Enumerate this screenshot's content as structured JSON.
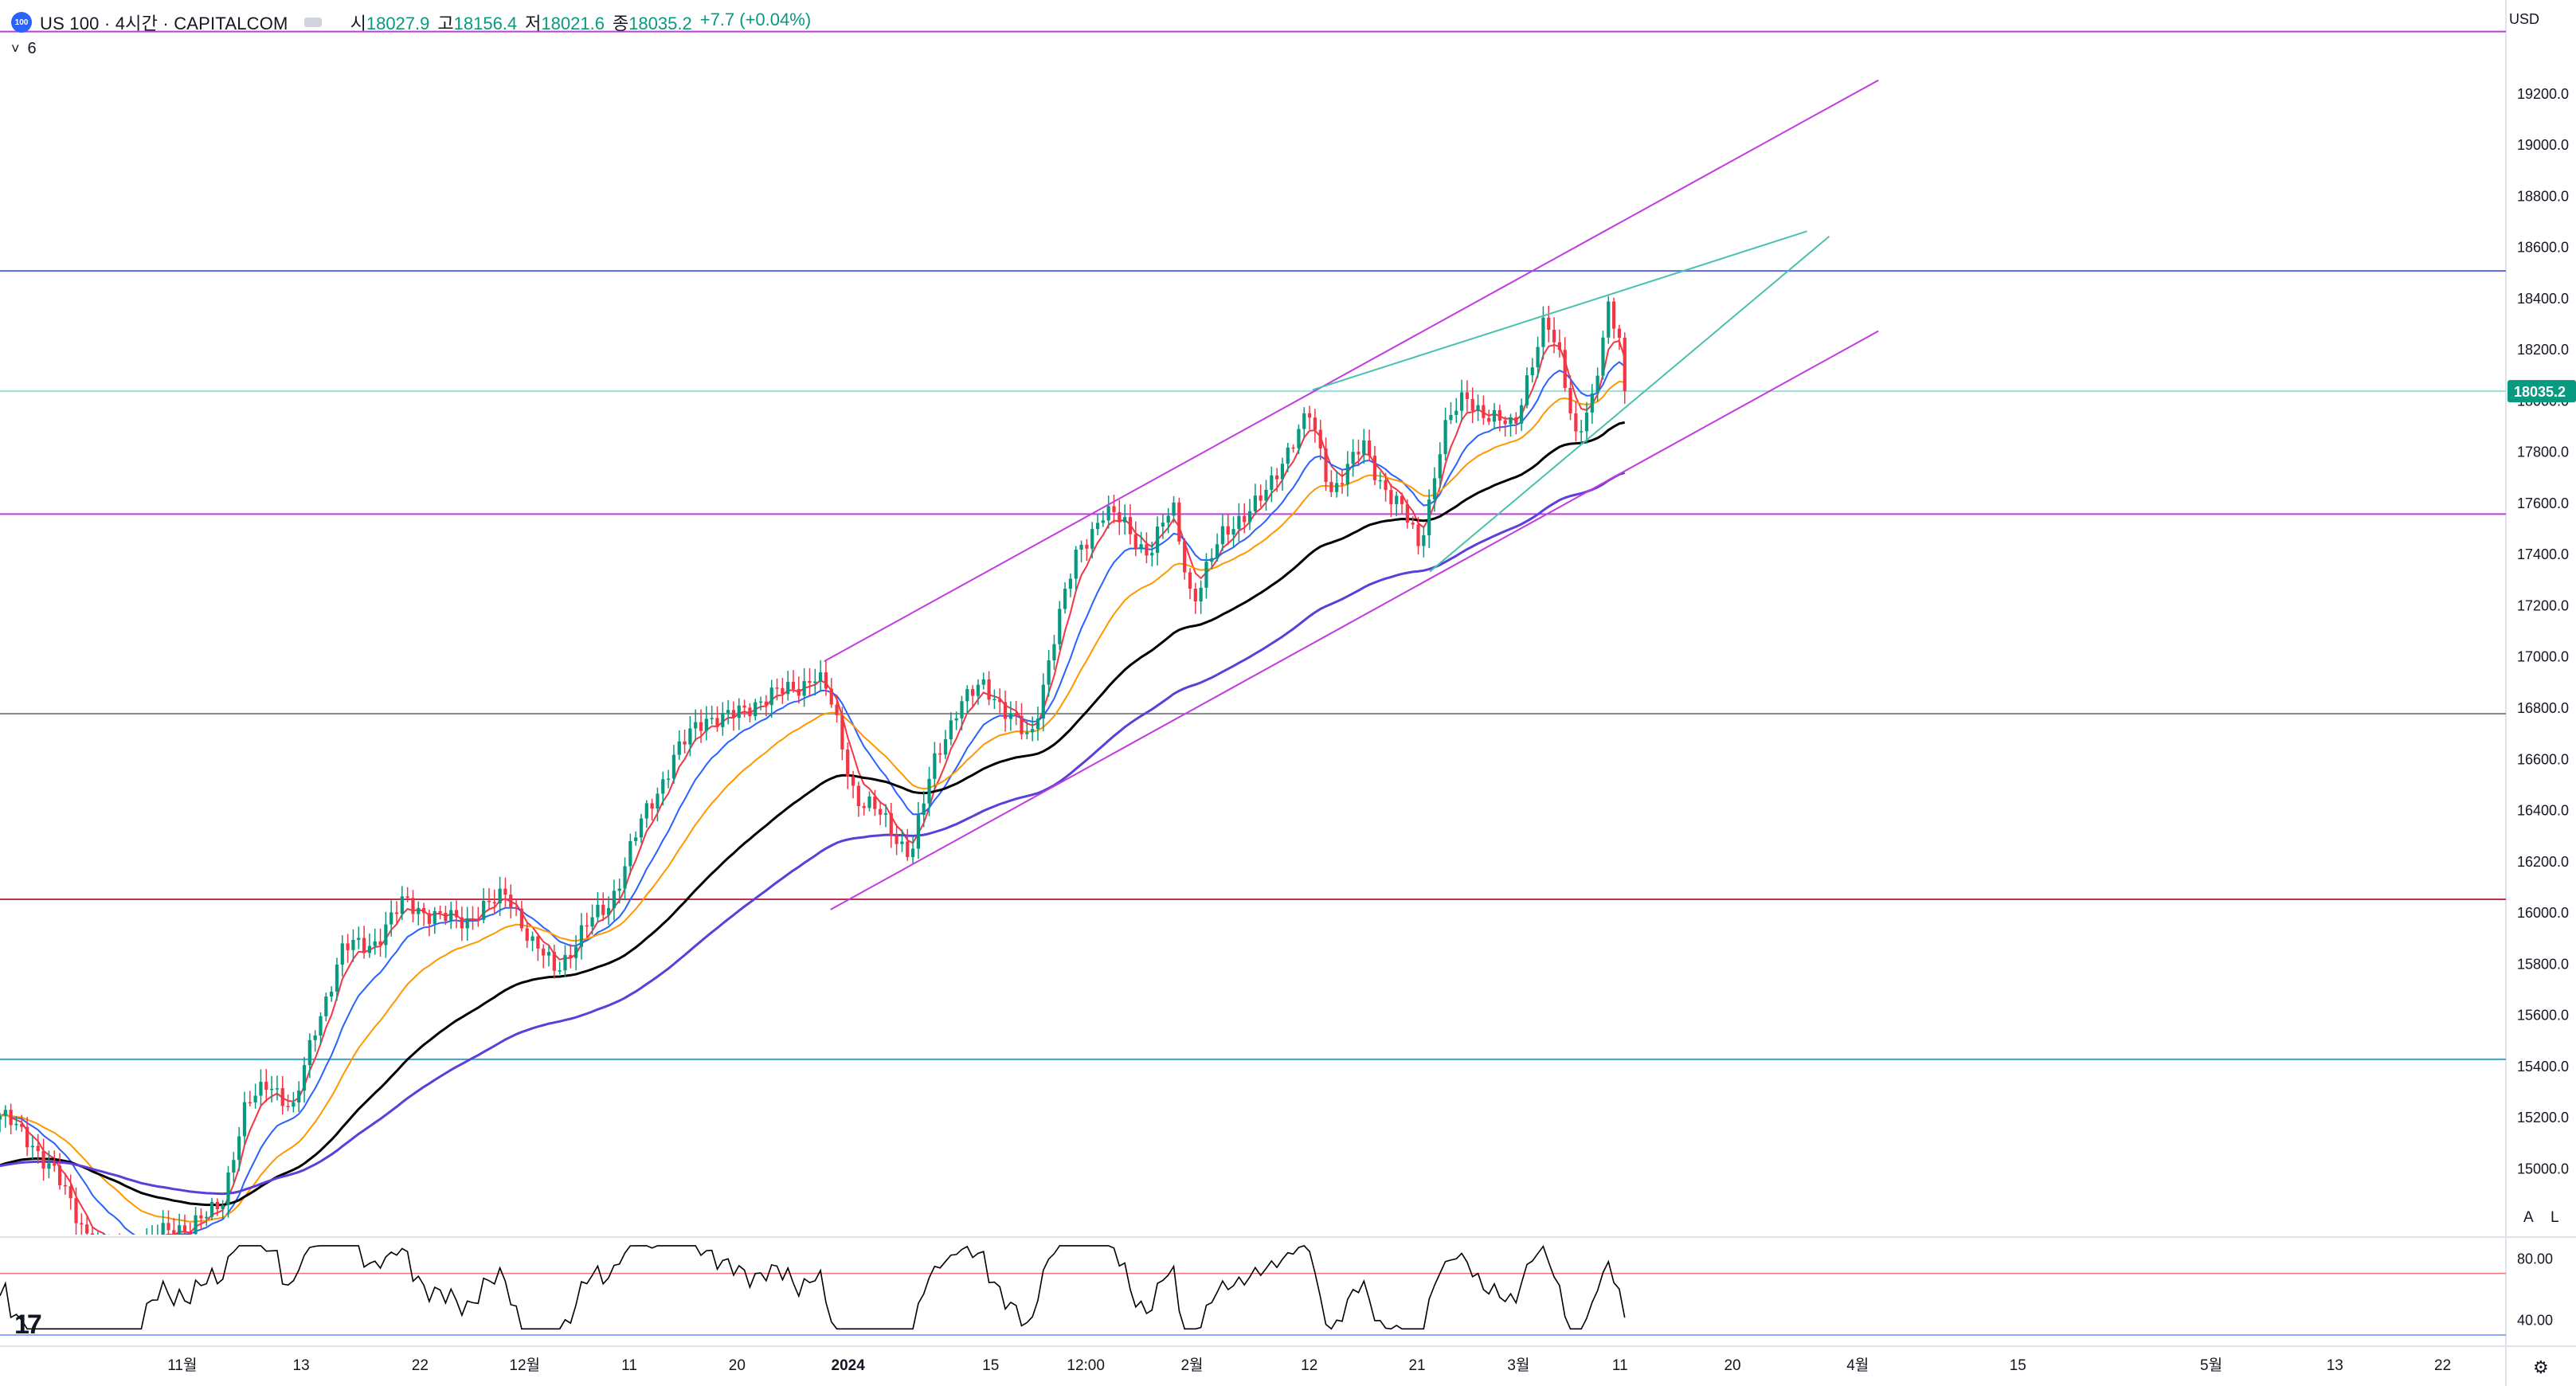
{
  "header": {
    "logo_text": "100",
    "symbol": "US 100 · 4시간 · CAPITALCOM",
    "open_label": "시",
    "open": "18027.9",
    "high_label": "고",
    "high": "18156.4",
    "low_label": "저",
    "low": "18021.6",
    "close_label": "종",
    "close": "18035.2",
    "change": "+7.7 (+0.04%)"
  },
  "indicator_row": {
    "chevron": "˅",
    "count": "6"
  },
  "currency": "USD",
  "scale_buttons": {
    "auto": "A",
    "log": "L"
  },
  "tv_logo": "17",
  "colors": {
    "up": "#089981",
    "down": "#f23645",
    "ma_red": "#f23645",
    "ma_blue": "#2962ff",
    "ma_orange": "#ff9800",
    "ma_black": "#000000",
    "ma_purple": "#5b3fd8",
    "channel": "#c13cde",
    "wedge": "#4bc0b0",
    "rsi": "#000000"
  },
  "chart_data": {
    "type": "candlestick",
    "price_axis": {
      "range": [
        14740,
        19470
      ],
      "ticks": [
        "19200.0",
        "19000.0",
        "18800.0",
        "18600.0",
        "18400.0",
        "18200.0",
        "18000.0",
        "17800.0",
        "17600.0",
        "17400.0",
        "17200.0",
        "17000.0",
        "16800.0",
        "16600.0",
        "16400.0",
        "16200.0",
        "16000.0",
        "15800.0",
        "15600.0",
        "15400.0",
        "15200.0",
        "15000.0"
      ],
      "last_price": "18035.2"
    },
    "time_axis": {
      "ticks": [
        {
          "label": "11월",
          "bar": 0.115
        },
        {
          "label": "13",
          "bar": 0.19
        },
        {
          "label": "22",
          "bar": 0.265
        },
        {
          "label": "12월",
          "bar": 0.331
        },
        {
          "label": "11",
          "bar": 0.397
        },
        {
          "label": "20",
          "bar": 0.465
        },
        {
          "label": "2024",
          "bar": 0.535
        },
        {
          "label": "15",
          "bar": 0.625
        },
        {
          "label": "12:00",
          "bar": 0.685
        },
        {
          "label": "2월",
          "bar": 0.752
        },
        {
          "label": "12",
          "bar": 0.826
        },
        {
          "label": "21",
          "bar": 0.894
        },
        {
          "label": "3월",
          "bar": 0.958
        },
        {
          "label": "11",
          "bar": 1.022
        },
        {
          "label": "20",
          "bar": 1.093
        },
        {
          "label": "4월",
          "bar": 1.172
        },
        {
          "label": "15",
          "bar": 1.273
        },
        {
          "label": "5월",
          "bar": 1.395
        },
        {
          "label": "13",
          "bar": 1.473
        },
        {
          "label": "22",
          "bar": 1.541
        }
      ]
    },
    "price_path": [
      [
        0.0,
        15190
      ],
      [
        0.02,
        15120
      ],
      [
        0.04,
        14900
      ],
      [
        0.06,
        14720
      ],
      [
        0.08,
        14640
      ],
      [
        0.1,
        14740
      ],
      [
        0.12,
        14770
      ],
      [
        0.14,
        14870
      ],
      [
        0.155,
        15230
      ],
      [
        0.17,
        15360
      ],
      [
        0.185,
        15200
      ],
      [
        0.2,
        15590
      ],
      [
        0.215,
        15830
      ],
      [
        0.235,
        15890
      ],
      [
        0.255,
        16030
      ],
      [
        0.275,
        15990
      ],
      [
        0.295,
        15960
      ],
      [
        0.32,
        16090
      ],
      [
        0.335,
        15860
      ],
      [
        0.35,
        15800
      ],
      [
        0.365,
        15880
      ],
      [
        0.385,
        16060
      ],
      [
        0.405,
        16340
      ],
      [
        0.425,
        16620
      ],
      [
        0.445,
        16750
      ],
      [
        0.47,
        16790
      ],
      [
        0.495,
        16870
      ],
      [
        0.515,
        16920
      ],
      [
        0.525,
        16800
      ],
      [
        0.54,
        16460
      ],
      [
        0.56,
        16330
      ],
      [
        0.575,
        16250
      ],
      [
        0.59,
        16580
      ],
      [
        0.605,
        16830
      ],
      [
        0.62,
        16880
      ],
      [
        0.64,
        16750
      ],
      [
        0.65,
        16670
      ],
      [
        0.665,
        17070
      ],
      [
        0.68,
        17420
      ],
      [
        0.695,
        17560
      ],
      [
        0.71,
        17500
      ],
      [
        0.725,
        17420
      ],
      [
        0.74,
        17560
      ],
      [
        0.752,
        17230
      ],
      [
        0.77,
        17450
      ],
      [
        0.785,
        17560
      ],
      [
        0.8,
        17650
      ],
      [
        0.815,
        17830
      ],
      [
        0.826,
        17950
      ],
      [
        0.84,
        17650
      ],
      [
        0.85,
        17720
      ],
      [
        0.86,
        17820
      ],
      [
        0.872,
        17690
      ],
      [
        0.885,
        17550
      ],
      [
        0.895,
        17420
      ],
      [
        0.91,
        17880
      ],
      [
        0.925,
        18000
      ],
      [
        0.94,
        17950
      ],
      [
        0.955,
        17880
      ],
      [
        0.965,
        18120
      ],
      [
        0.975,
        18320
      ],
      [
        0.985,
        18150
      ],
      [
        0.994,
        17860
      ],
      [
        1.005,
        17990
      ],
      [
        1.015,
        18380
      ],
      [
        1.022,
        18260
      ],
      [
        1.025,
        18035
      ]
    ],
    "moving_averages": [
      {
        "color": "#f23645",
        "lag": 3
      },
      {
        "color": "#2962ff",
        "lag": 8
      },
      {
        "color": "#ff9800",
        "lag": 16
      },
      {
        "color": "#000000",
        "lag": 36
      },
      {
        "color": "#5b3fd8",
        "lag": 60
      }
    ],
    "horizontal_lines": [
      {
        "price": 19440,
        "color": "#c13cde"
      },
      {
        "price": 18505,
        "color": "#5b6ad8"
      },
      {
        "price": 18035,
        "color": "#9adfd6"
      },
      {
        "price": 17555,
        "color": "#c13cde"
      },
      {
        "price": 16775,
        "color": "#8a8a8a"
      },
      {
        "price": 16050,
        "color": "#c2304a"
      },
      {
        "price": 15425,
        "color": "#3aa7c9"
      }
    ],
    "trend_lines": [
      {
        "from": [
          0.52,
          16980
        ],
        "to": [
          1.185,
          19250
        ],
        "color": "#c13cde"
      },
      {
        "from": [
          0.524,
          16010
        ],
        "to": [
          1.185,
          18270
        ],
        "color": "#c13cde"
      },
      {
        "from": [
          0.828,
          18040
        ],
        "to": [
          1.14,
          18660
        ],
        "color": "#4bc0b0"
      },
      {
        "from": [
          0.902,
          17330
        ],
        "to": [
          1.154,
          18640
        ],
        "color": "#4bc0b0"
      }
    ],
    "rsi": {
      "range": [
        30,
        90
      ],
      "levels": [
        70,
        30
      ],
      "ticks": [
        "80.00",
        "40.00"
      ]
    }
  }
}
